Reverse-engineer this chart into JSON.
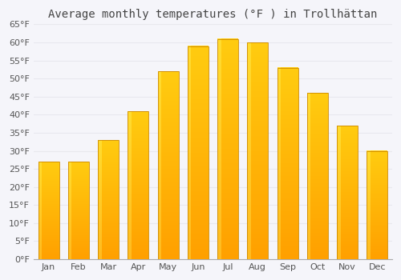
{
  "title": "Average monthly temperatures (°F ) in Trollhättan",
  "months": [
    "Jan",
    "Feb",
    "Mar",
    "Apr",
    "May",
    "Jun",
    "Jul",
    "Aug",
    "Sep",
    "Oct",
    "Nov",
    "Dec"
  ],
  "values": [
    27,
    27,
    33,
    41,
    52,
    59,
    61,
    60,
    53,
    46,
    37,
    30
  ],
  "ylim": [
    0,
    65
  ],
  "yticks": [
    0,
    5,
    10,
    15,
    20,
    25,
    30,
    35,
    40,
    45,
    50,
    55,
    60,
    65
  ],
  "bar_color_bottom": "#F5A623",
  "bar_color_mid": "#FFBB33",
  "bar_color_top": "#FFC84A",
  "bar_highlight": "#FFD870",
  "background_color": "#f5f5fa",
  "title_fontsize": 10,
  "tick_fontsize": 8,
  "bar_edge_color": "#CC8800",
  "grid_color": "#e8e8ee",
  "axes_bg": "#f5f5fa"
}
